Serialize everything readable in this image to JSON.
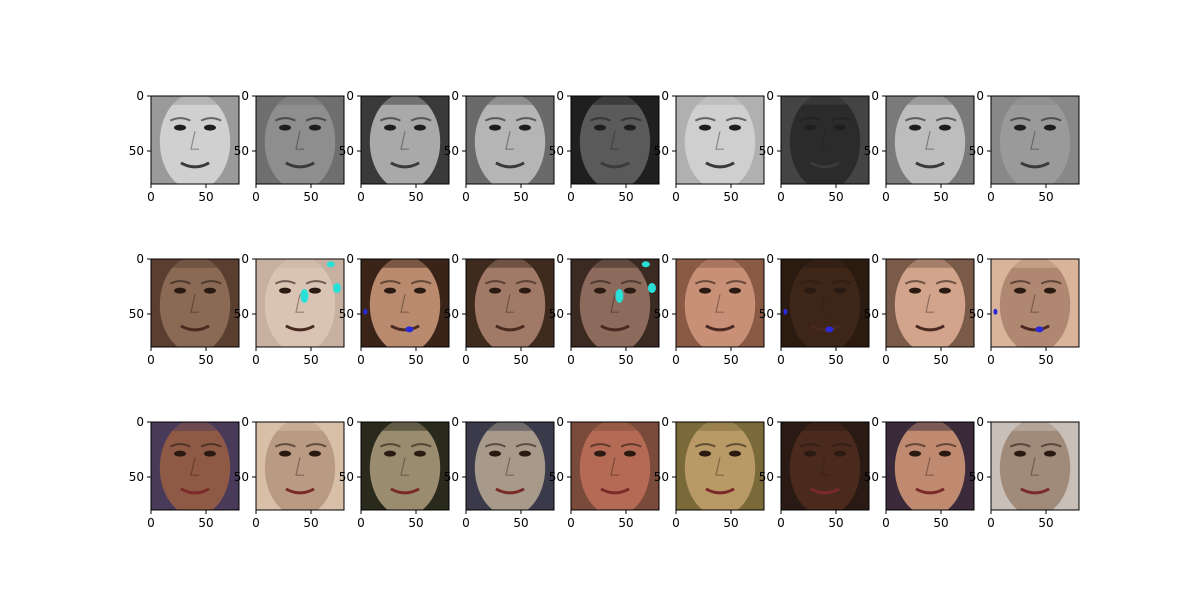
{
  "chart_data": {
    "type": "image-grid",
    "rows": 3,
    "cols": 9,
    "row_styles": [
      "grayscale",
      "colorized",
      "original-color"
    ],
    "image_extent": [
      0,
      80
    ],
    "xticks": [
      "0",
      "50"
    ],
    "yticks": [
      "0",
      "50"
    ],
    "tick_values": [
      0,
      50
    ],
    "tone_palettes": {
      "grayscale": [
        "#d0d0d0",
        "#8e8e8e",
        "#a9a9a9",
        "#b5b5b5",
        "#5a5a5a",
        "#cfcfcf",
        "#2b2b2b",
        "#bdbdbd",
        "#9a9a9a"
      ],
      "colorized": [
        "#8a6a55",
        "#d9c4b4",
        "#b98a6e",
        "#a07a66",
        "#8c6a5c",
        "#c99078",
        "#3d2518",
        "#d2a48c",
        "#b08872"
      ],
      "original-color": [
        "#8f5a45",
        "#b99a82",
        "#9a8c6e",
        "#a79a8a",
        "#b46a55",
        "#b99a66",
        "#4a2a1c",
        "#c08a70",
        "#a08a7a"
      ]
    },
    "background_tones": {
      "grayscale": [
        "#9a9a9a",
        "#6f6f6f",
        "#3a3a3a",
        "#6a6a6a",
        "#1f1f1f",
        "#b0b0b0",
        "#444444",
        "#7a7a7a",
        "#888888"
      ],
      "colorized": [
        "#5a3e30",
        "#c8b0a0",
        "#3a2418",
        "#3f2a1e",
        "#3a2a22",
        "#8a5a44",
        "#2a1a10",
        "#7a5a48",
        "#d9b49a"
      ],
      "original-color": [
        "#4a3a5a",
        "#d8c0a8",
        "#2a2a1c",
        "#3a3a4a",
        "#7a4a3a",
        "#7a6a3a",
        "#2a1a14",
        "#3a2a3a",
        "#c8c0b8"
      ]
    },
    "markings": {
      "colorized": [
        "",
        "cyan",
        "blue",
        "",
        "cyan",
        "",
        "blue",
        "",
        "blue"
      ]
    }
  }
}
